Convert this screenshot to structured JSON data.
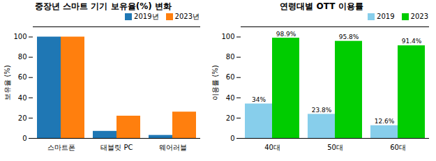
{
  "chart_data": [
    {
      "type": "bar",
      "title": "중장년 스마트 기기 보유율(%) 변화",
      "categories": [
        "스마트폰",
        "태블릿 PC",
        "웨어러블"
      ],
      "series": [
        {
          "name": "2019년",
          "color": "#1f77b4",
          "values": [
            100,
            7,
            3
          ]
        },
        {
          "name": "2023년",
          "color": "#ff7f0e",
          "values": [
            100,
            22,
            26
          ]
        }
      ],
      "ylabel": "보유율 (%)",
      "ylim": [
        0,
        110
      ],
      "yticks": [
        0,
        20,
        40,
        60,
        80,
        100
      ],
      "grid": false,
      "legend": "upper right"
    },
    {
      "type": "bar",
      "title": "연령대별 OTT 이용률",
      "categories": [
        "40대",
        "50대",
        "60대"
      ],
      "series": [
        {
          "name": "2019",
          "color": "#87CEEB",
          "values": [
            34,
            23.8,
            12.6
          ],
          "value_labels": [
            "34%",
            "23.8%",
            "12.6%"
          ]
        },
        {
          "name": "2023",
          "color": "#00CC00",
          "values": [
            98.9,
            95.8,
            91.4
          ],
          "value_labels": [
            "98.9%",
            "95.8%",
            "91.4%"
          ]
        }
      ],
      "ylabel": "이용률 (%)",
      "ylim": [
        0,
        110
      ],
      "yticks": [
        0,
        20,
        40,
        60,
        80,
        100
      ],
      "grid": false,
      "legend": "upper right",
      "data_labels": true
    }
  ]
}
